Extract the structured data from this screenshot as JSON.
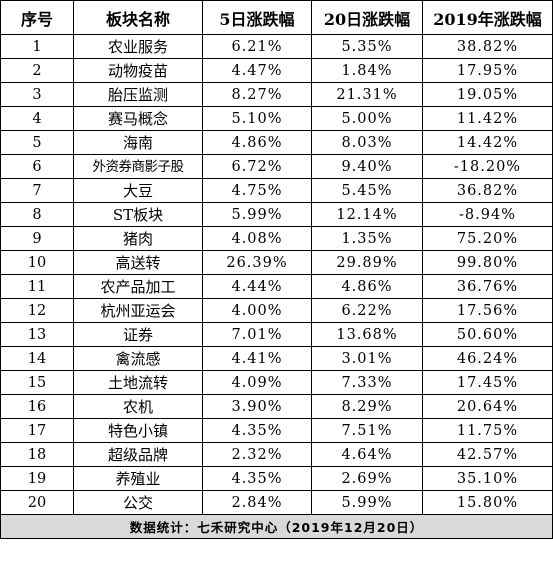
{
  "table": {
    "headers": [
      "序号",
      "板块名称",
      "5日涨跌幅",
      "20日涨跌幅",
      "2019年涨跌幅"
    ],
    "rows": [
      [
        "1",
        "农业服务",
        "6.21%",
        "5.35%",
        "38.82%"
      ],
      [
        "2",
        "动物疫苗",
        "4.47%",
        "1.84%",
        "17.95%"
      ],
      [
        "3",
        "胎压监测",
        "8.27%",
        "21.31%",
        "19.05%"
      ],
      [
        "4",
        "赛马概念",
        "5.10%",
        "5.00%",
        "11.42%"
      ],
      [
        "5",
        "海南",
        "4.86%",
        "8.03%",
        "14.42%"
      ],
      [
        "6",
        "外资券商影子股",
        "6.72%",
        "9.40%",
        "-18.20%"
      ],
      [
        "7",
        "大豆",
        "4.75%",
        "5.45%",
        "36.82%"
      ],
      [
        "8",
        "ST板块",
        "5.99%",
        "12.14%",
        "-8.94%"
      ],
      [
        "9",
        "猪肉",
        "4.08%",
        "1.35%",
        "75.20%"
      ],
      [
        "10",
        "高送转",
        "26.39%",
        "29.89%",
        "99.80%"
      ],
      [
        "11",
        "农产品加工",
        "4.44%",
        "4.86%",
        "36.76%"
      ],
      [
        "12",
        "杭州亚运会",
        "4.00%",
        "6.22%",
        "17.56%"
      ],
      [
        "13",
        "证券",
        "7.01%",
        "13.68%",
        "50.60%"
      ],
      [
        "14",
        "禽流感",
        "4.41%",
        "3.01%",
        "46.24%"
      ],
      [
        "15",
        "土地流转",
        "4.09%",
        "7.33%",
        "17.45%"
      ],
      [
        "16",
        "农机",
        "3.90%",
        "8.29%",
        "20.64%"
      ],
      [
        "17",
        "特色小镇",
        "4.35%",
        "7.51%",
        "11.75%"
      ],
      [
        "18",
        "超级品牌",
        "2.32%",
        "4.64%",
        "42.57%"
      ],
      [
        "19",
        "养殖业",
        "4.35%",
        "2.69%",
        "35.10%"
      ],
      [
        "20",
        "公交",
        "2.84%",
        "5.99%",
        "15.80%"
      ]
    ],
    "footer": "数据统计：七禾研究中心（2019年12月20日）"
  }
}
